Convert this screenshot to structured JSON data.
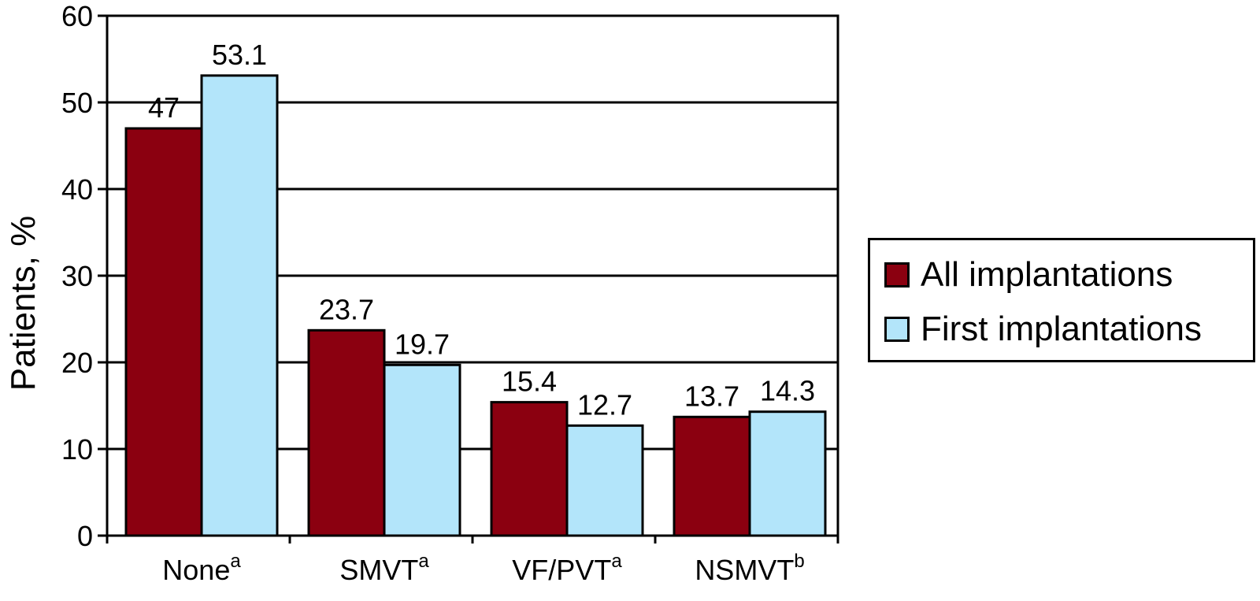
{
  "chart_data": {
    "type": "bar",
    "title": "",
    "xlabel": "",
    "ylabel": "Patients, %",
    "ylim": [
      0,
      60
    ],
    "yticks": [
      0,
      10,
      20,
      30,
      40,
      50,
      60
    ],
    "grid": true,
    "legend_position": "right",
    "categories": [
      {
        "base": "None",
        "sup": "a"
      },
      {
        "base": "SMVT",
        "sup": "a"
      },
      {
        "base": "VF/PVT",
        "sup": "a"
      },
      {
        "base": "NSMVT",
        "sup": "b"
      }
    ],
    "series": [
      {
        "name": "All implantations",
        "color": "#8B0010",
        "values": [
          47,
          23.7,
          15.4,
          13.7
        ],
        "labels": [
          "47",
          "23.7",
          "15.4",
          "13.7"
        ]
      },
      {
        "name": "First implantations",
        "color": "#B3E5FA",
        "values": [
          53.1,
          19.7,
          12.7,
          14.3
        ],
        "labels": [
          "53.1",
          "19.7",
          "12.7",
          "14.3"
        ]
      }
    ]
  }
}
